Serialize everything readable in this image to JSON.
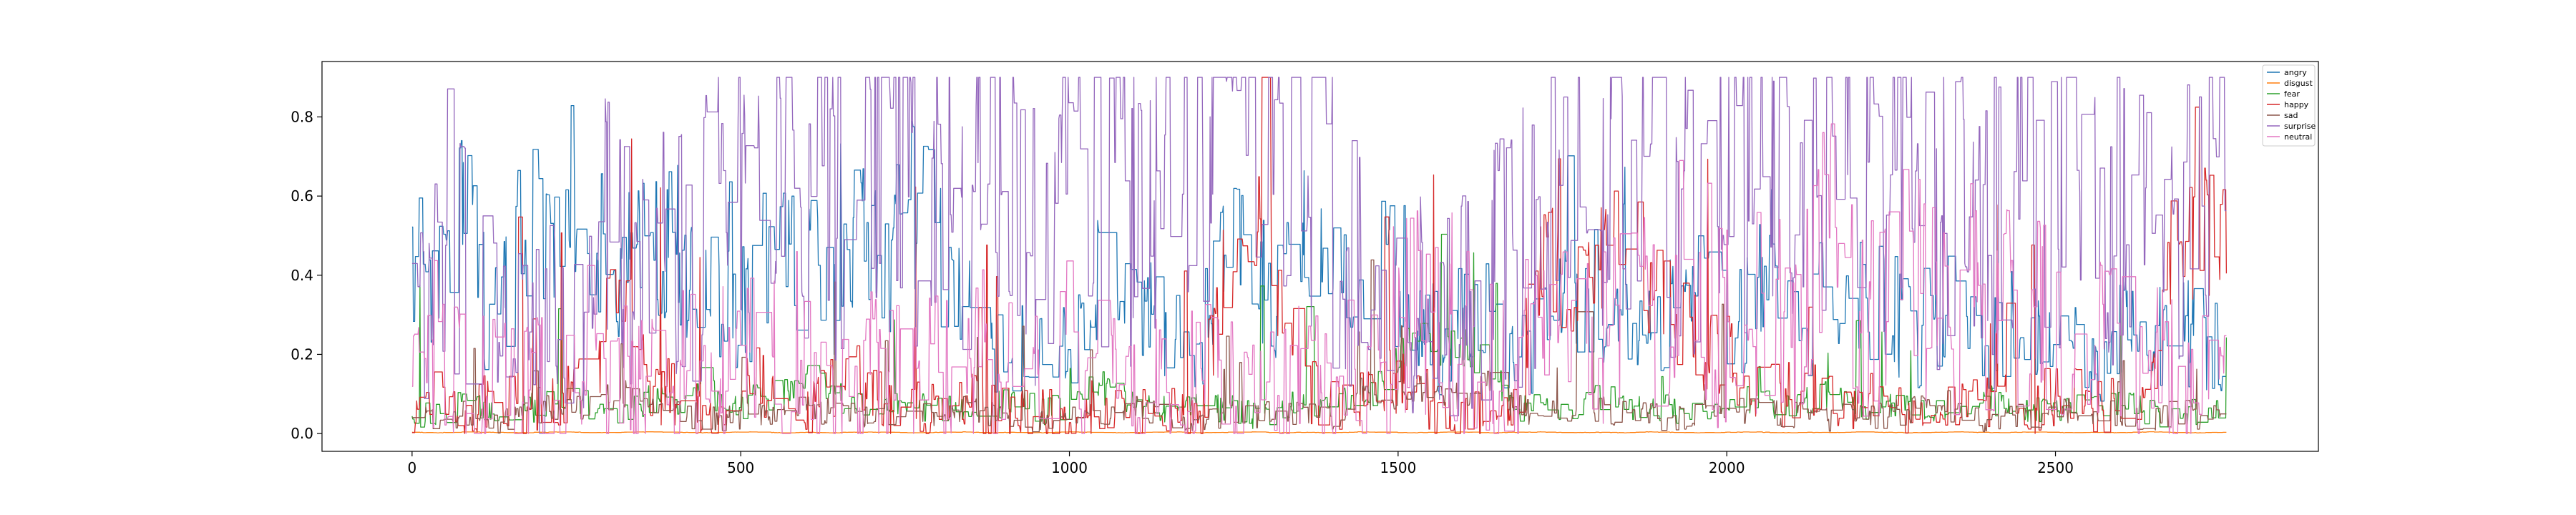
{
  "chart_data": {
    "type": "line",
    "title": "",
    "xlabel": "",
    "ylabel": "",
    "xlim": [
      -137,
      2900
    ],
    "ylim": [
      -0.045,
      0.94
    ],
    "x_ticks": [
      0,
      500,
      1000,
      1500,
      2000,
      2500
    ],
    "x_tick_labels": [
      "0",
      "500",
      "1000",
      "1500",
      "2000",
      "2500"
    ],
    "y_ticks": [
      0.0,
      0.2,
      0.4,
      0.6,
      0.8
    ],
    "y_tick_labels": [
      "0.0",
      "0.2",
      "0.4",
      "0.6",
      "0.8"
    ],
    "grid": false,
    "legend_position": "upper-right",
    "x_range": [
      0,
      2760
    ],
    "n_points": 2761,
    "sample_x": [
      0,
      40,
      80,
      120,
      160,
      200,
      240,
      280,
      320,
      360,
      400,
      440,
      480,
      520,
      560,
      600,
      640,
      680,
      720,
      760,
      800,
      840,
      880,
      920,
      960,
      1000,
      1040,
      1080,
      1120,
      1160,
      1200,
      1240,
      1280,
      1320,
      1360,
      1400,
      1440,
      1480,
      1520,
      1560,
      1600,
      1640,
      1680,
      1720,
      1760,
      1800,
      1840,
      1880,
      1920,
      1960,
      2000,
      2040,
      2080,
      2120,
      2160,
      2200,
      2240,
      2280,
      2320,
      2360,
      2400,
      2440,
      2480,
      2520,
      2560,
      2600,
      2640,
      2680,
      2720,
      2760
    ],
    "series": [
      {
        "name": "angry",
        "color": "#1f77b4",
        "values": [
          0.42,
          0.34,
          0.55,
          0.24,
          0.44,
          0.52,
          0.6,
          0.45,
          0.38,
          0.5,
          0.48,
          0.35,
          0.33,
          0.28,
          0.4,
          0.42,
          0.35,
          0.46,
          0.38,
          0.55,
          0.44,
          0.3,
          0.16,
          0.22,
          0.3,
          0.24,
          0.36,
          0.28,
          0.32,
          0.26,
          0.22,
          0.44,
          0.36,
          0.32,
          0.45,
          0.37,
          0.34,
          0.42,
          0.26,
          0.22,
          0.28,
          0.3,
          0.16,
          0.24,
          0.36,
          0.28,
          0.34,
          0.24,
          0.3,
          0.38,
          0.26,
          0.32,
          0.45,
          0.28,
          0.38,
          0.3,
          0.34,
          0.24,
          0.28,
          0.3,
          0.18,
          0.28,
          0.23,
          0.26,
          0.12,
          0.24,
          0.22,
          0.24,
          0.22,
          0.2
        ]
      },
      {
        "name": "disgust",
        "color": "#ff7f0e",
        "values": [
          0.003,
          0.002,
          0.004,
          0.003,
          0.002,
          0.003,
          0.004,
          0.002,
          0.003,
          0.004,
          0.003,
          0.002,
          0.003,
          0.004,
          0.002,
          0.003,
          0.002,
          0.004,
          0.003,
          0.002,
          0.003,
          0.004,
          0.002,
          0.003,
          0.002,
          0.004,
          0.003,
          0.002,
          0.003,
          0.004,
          0.002,
          0.003,
          0.004,
          0.002,
          0.003,
          0.002,
          0.004,
          0.003,
          0.002,
          0.003,
          0.004,
          0.002,
          0.003,
          0.004,
          0.002,
          0.003,
          0.002,
          0.004,
          0.003,
          0.002,
          0.003,
          0.004,
          0.002,
          0.003,
          0.002,
          0.004,
          0.003,
          0.002,
          0.003,
          0.004,
          0.002,
          0.003,
          0.004,
          0.002,
          0.003,
          0.002,
          0.004,
          0.003,
          0.002,
          0.003
        ]
      },
      {
        "name": "fear",
        "color": "#2ca02c",
        "values": [
          0.05,
          0.04,
          0.08,
          0.06,
          0.05,
          0.07,
          0.09,
          0.06,
          0.05,
          0.08,
          0.07,
          0.12,
          0.06,
          0.08,
          0.1,
          0.16,
          0.09,
          0.07,
          0.06,
          0.08,
          0.05,
          0.07,
          0.06,
          0.09,
          0.05,
          0.07,
          0.12,
          0.08,
          0.06,
          0.05,
          0.07,
          0.06,
          0.04,
          0.05,
          0.08,
          0.06,
          0.09,
          0.12,
          0.24,
          0.18,
          0.22,
          0.16,
          0.06,
          0.08,
          0.05,
          0.1,
          0.06,
          0.08,
          0.05,
          0.07,
          0.06,
          0.09,
          0.05,
          0.08,
          0.1,
          0.06,
          0.08,
          0.05,
          0.06,
          0.07,
          0.08,
          0.06,
          0.05,
          0.07,
          0.06,
          0.08,
          0.05,
          0.04,
          0.05,
          0.06
        ]
      },
      {
        "name": "happy",
        "color": "#d62728",
        "values": [
          0.05,
          0.12,
          0.04,
          0.08,
          0.06,
          0.05,
          0.1,
          0.16,
          0.4,
          0.08,
          0.1,
          0.06,
          0.05,
          0.12,
          0.08,
          0.06,
          0.1,
          0.14,
          0.05,
          0.06,
          0.04,
          0.08,
          0.05,
          0.06,
          0.04,
          0.05,
          0.06,
          0.04,
          0.05,
          0.06,
          0.04,
          0.5,
          0.6,
          0.3,
          0.1,
          0.06,
          0.08,
          0.12,
          0.1,
          0.06,
          0.05,
          0.08,
          0.06,
          0.5,
          0.3,
          0.4,
          0.5,
          0.35,
          0.3,
          0.2,
          0.18,
          0.1,
          0.08,
          0.12,
          0.06,
          0.08,
          0.05,
          0.04,
          0.06,
          0.05,
          0.08,
          0.06,
          0.05,
          0.1,
          0.06,
          0.08,
          0.1,
          0.46,
          0.48,
          0.5
        ]
      },
      {
        "name": "sad",
        "color": "#8c564b",
        "values": [
          0.04,
          0.03,
          0.05,
          0.02,
          0.04,
          0.06,
          0.05,
          0.08,
          0.1,
          0.06,
          0.05,
          0.04,
          0.03,
          0.05,
          0.04,
          0.06,
          0.05,
          0.04,
          0.03,
          0.05,
          0.04,
          0.06,
          0.05,
          0.04,
          0.03,
          0.05,
          0.04,
          0.06,
          0.05,
          0.04,
          0.03,
          0.05,
          0.04,
          0.06,
          0.05,
          0.04,
          0.1,
          0.08,
          0.12,
          0.1,
          0.08,
          0.12,
          0.06,
          0.05,
          0.04,
          0.06,
          0.05,
          0.04,
          0.03,
          0.05,
          0.04,
          0.06,
          0.05,
          0.04,
          0.03,
          0.05,
          0.04,
          0.06,
          0.05,
          0.04,
          0.03,
          0.05,
          0.04,
          0.06,
          0.05,
          0.04,
          0.03,
          0.05,
          0.04,
          0.05
        ]
      },
      {
        "name": "surprise",
        "color": "#9467bd",
        "values": [
          0.3,
          0.45,
          0.5,
          0.24,
          0.22,
          0.2,
          0.18,
          0.5,
          0.4,
          0.3,
          0.45,
          0.5,
          0.55,
          0.6,
          0.62,
          0.58,
          0.6,
          0.7,
          0.75,
          0.55,
          0.6,
          0.5,
          0.72,
          0.6,
          0.4,
          0.78,
          0.7,
          0.6,
          0.5,
          0.72,
          0.65,
          0.7,
          0.75,
          0.78,
          0.85,
          0.5,
          0.45,
          0.3,
          0.28,
          0.3,
          0.32,
          0.4,
          0.42,
          0.5,
          0.6,
          0.55,
          0.65,
          0.6,
          0.58,
          0.5,
          0.62,
          0.7,
          0.68,
          0.6,
          0.55,
          0.58,
          0.5,
          0.6,
          0.56,
          0.58,
          0.55,
          0.62,
          0.6,
          0.58,
          0.5,
          0.56,
          0.52,
          0.5,
          0.55,
          0.6
        ]
      },
      {
        "name": "neutral",
        "color": "#e377c2",
        "values": [
          0.15,
          0.22,
          0.12,
          0.1,
          0.12,
          0.1,
          0.08,
          0.1,
          0.12,
          0.1,
          0.14,
          0.12,
          0.1,
          0.18,
          0.15,
          0.12,
          0.1,
          0.14,
          0.12,
          0.1,
          0.15,
          0.2,
          0.1,
          0.12,
          0.08,
          0.1,
          0.14,
          0.12,
          0.1,
          0.08,
          0.12,
          0.1,
          0.08,
          0.1,
          0.12,
          0.1,
          0.14,
          0.2,
          0.3,
          0.28,
          0.22,
          0.2,
          0.18,
          0.2,
          0.22,
          0.25,
          0.3,
          0.28,
          0.35,
          0.3,
          0.25,
          0.28,
          0.3,
          0.35,
          0.4,
          0.3,
          0.28,
          0.35,
          0.3,
          0.32,
          0.25,
          0.3,
          0.28,
          0.22,
          0.2,
          0.18,
          0.15,
          0.12,
          0.1,
          0.08
        ]
      }
    ]
  }
}
